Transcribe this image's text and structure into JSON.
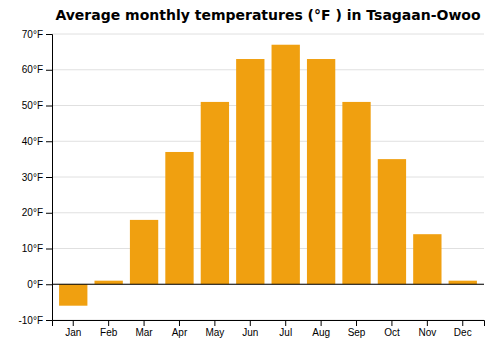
{
  "chart_data": {
    "type": "bar",
    "title": "Average monthly temperatures (°F ) in Tsagaan-Owoo",
    "categories": [
      "Jan",
      "Feb",
      "Mar",
      "Apr",
      "May",
      "Jun",
      "Jul",
      "Aug",
      "Sep",
      "Oct",
      "Nov",
      "Dec"
    ],
    "values": [
      -6,
      1,
      18,
      37,
      51,
      63,
      67,
      63,
      51,
      35,
      14,
      1
    ],
    "color": "#F0A010",
    "ylim": [
      -10,
      70
    ],
    "yticks": [
      {
        "value": -10,
        "label": "-10°F"
      },
      {
        "value": 0,
        "label": "0°F"
      },
      {
        "value": 10,
        "label": "10°F"
      },
      {
        "value": 20,
        "label": "20°F"
      },
      {
        "value": 30,
        "label": "30°F"
      },
      {
        "value": 40,
        "label": "40°F"
      },
      {
        "value": 50,
        "label": "50°F"
      },
      {
        "value": 60,
        "label": "60°F"
      },
      {
        "value": 70,
        "label": "70°F"
      }
    ],
    "grid": true
  }
}
